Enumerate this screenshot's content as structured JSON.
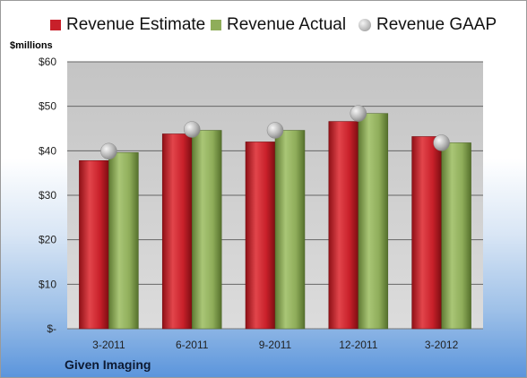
{
  "legend": {
    "estimate": "Revenue Estimate",
    "actual": "Revenue Actual",
    "gaap": "Revenue GAAP"
  },
  "unit_label": "$millions",
  "company": "Given Imaging",
  "colors": {
    "estimate": "#c8202a",
    "actual": "#8fad5a",
    "gaap": "#b9b9b9",
    "plot_bg": "#cfcfcf"
  },
  "chart_data": {
    "type": "bar",
    "categories": [
      "3-2011",
      "6-2011",
      "9-2011",
      "12-2011",
      "3-2012"
    ],
    "series": [
      {
        "name": "Revenue Estimate",
        "values": [
          37.8,
          43.8,
          42.0,
          46.6,
          43.2
        ]
      },
      {
        "name": "Revenue Actual",
        "values": [
          39.6,
          44.6,
          44.6,
          48.4,
          41.8
        ]
      },
      {
        "name": "Revenue GAAP",
        "values": [
          39.9,
          44.8,
          44.6,
          48.4,
          41.8
        ]
      }
    ],
    "ylim": [
      0,
      60
    ],
    "yticks": [
      0,
      10,
      20,
      30,
      40,
      50,
      60
    ],
    "ytick_labels": [
      "$-",
      "$10",
      "$20",
      "$30",
      "$40",
      "$50",
      "$60"
    ],
    "ylabel": "$millions",
    "grid": true,
    "legend_position": "top"
  }
}
